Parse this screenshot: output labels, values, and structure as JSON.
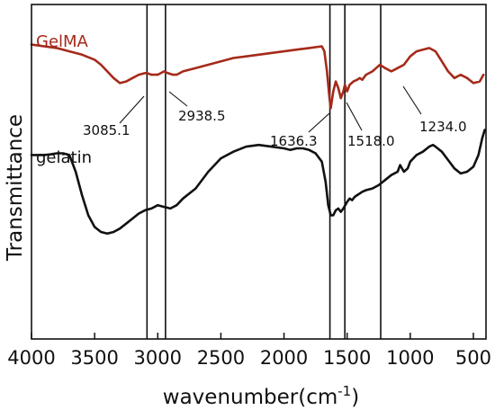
{
  "chart_data": {
    "type": "line",
    "title": "",
    "xlabel": "wavenumber",
    "xunit": "cm",
    "xunit_exp": "-1",
    "ylabel": "Transmittance",
    "xlim": [
      4000,
      400
    ],
    "x_reversed": true,
    "y_ticks_shown": false,
    "grid": false,
    "xticks": [
      {
        "value": 4000,
        "label": "4000"
      },
      {
        "value": 3500,
        "label": "3500"
      },
      {
        "value": 3000,
        "label": "3000"
      },
      {
        "value": 2500,
        "label": "2500"
      },
      {
        "value": 2000,
        "label": "2000"
      },
      {
        "value": 1500,
        "label": "1500"
      },
      {
        "value": 1000,
        "label": "1000"
      },
      {
        "value": 500,
        "label": "500"
      }
    ],
    "reference_lines": [
      3085.1,
      2938.5,
      1636.3,
      1518.0,
      1234.0
    ],
    "peak_labels": [
      {
        "text": "3085.1",
        "x": 3085.1
      },
      {
        "text": "2938.5",
        "x": 2938.5
      },
      {
        "text": "1636.3",
        "x": 1636.3
      },
      {
        "text": "1518.0",
        "x": 1518.0
      },
      {
        "text": "1234.0",
        "x": 1234.0
      }
    ],
    "series": [
      {
        "name": "GelMA",
        "color": "#a52a1a",
        "points": [
          [
            4000,
            0.88
          ],
          [
            3900,
            0.875
          ],
          [
            3800,
            0.87
          ],
          [
            3700,
            0.86
          ],
          [
            3600,
            0.85
          ],
          [
            3500,
            0.835
          ],
          [
            3450,
            0.82
          ],
          [
            3400,
            0.8
          ],
          [
            3350,
            0.78
          ],
          [
            3300,
            0.765
          ],
          [
            3250,
            0.77
          ],
          [
            3200,
            0.78
          ],
          [
            3150,
            0.79
          ],
          [
            3100,
            0.795
          ],
          [
            3085,
            0.795
          ],
          [
            3050,
            0.79
          ],
          [
            3000,
            0.79
          ],
          [
            2950,
            0.8
          ],
          [
            2920,
            0.795
          ],
          [
            2880,
            0.79
          ],
          [
            2850,
            0.79
          ],
          [
            2800,
            0.8
          ],
          [
            2700,
            0.81
          ],
          [
            2600,
            0.82
          ],
          [
            2500,
            0.83
          ],
          [
            2400,
            0.84
          ],
          [
            2300,
            0.845
          ],
          [
            2200,
            0.85
          ],
          [
            2100,
            0.855
          ],
          [
            2000,
            0.86
          ],
          [
            1900,
            0.865
          ],
          [
            1800,
            0.87
          ],
          [
            1700,
            0.875
          ],
          [
            1680,
            0.86
          ],
          [
            1660,
            0.8
          ],
          [
            1640,
            0.72
          ],
          [
            1630,
            0.69
          ],
          [
            1610,
            0.74
          ],
          [
            1590,
            0.77
          ],
          [
            1570,
            0.75
          ],
          [
            1550,
            0.72
          ],
          [
            1530,
            0.74
          ],
          [
            1518,
            0.76
          ],
          [
            1500,
            0.74
          ],
          [
            1480,
            0.76
          ],
          [
            1450,
            0.77
          ],
          [
            1420,
            0.775
          ],
          [
            1400,
            0.78
          ],
          [
            1380,
            0.775
          ],
          [
            1350,
            0.79
          ],
          [
            1300,
            0.8
          ],
          [
            1270,
            0.81
          ],
          [
            1240,
            0.82
          ],
          [
            1200,
            0.81
          ],
          [
            1150,
            0.8
          ],
          [
            1100,
            0.81
          ],
          [
            1050,
            0.82
          ],
          [
            1000,
            0.845
          ],
          [
            950,
            0.86
          ],
          [
            900,
            0.865
          ],
          [
            850,
            0.87
          ],
          [
            800,
            0.86
          ],
          [
            750,
            0.83
          ],
          [
            700,
            0.8
          ],
          [
            650,
            0.78
          ],
          [
            600,
            0.79
          ],
          [
            550,
            0.78
          ],
          [
            500,
            0.765
          ],
          [
            450,
            0.77
          ],
          [
            420,
            0.79
          ]
        ]
      },
      {
        "name": "gelatin",
        "color": "#111111",
        "points": [
          [
            4000,
            0.55
          ],
          [
            3900,
            0.55
          ],
          [
            3850,
            0.552
          ],
          [
            3800,
            0.555
          ],
          [
            3750,
            0.555
          ],
          [
            3700,
            0.55
          ],
          [
            3650,
            0.5
          ],
          [
            3600,
            0.43
          ],
          [
            3550,
            0.37
          ],
          [
            3500,
            0.335
          ],
          [
            3450,
            0.32
          ],
          [
            3400,
            0.315
          ],
          [
            3350,
            0.32
          ],
          [
            3300,
            0.33
          ],
          [
            3250,
            0.345
          ],
          [
            3200,
            0.36
          ],
          [
            3150,
            0.375
          ],
          [
            3100,
            0.385
          ],
          [
            3050,
            0.39
          ],
          [
            3000,
            0.4
          ],
          [
            2950,
            0.395
          ],
          [
            2900,
            0.39
          ],
          [
            2850,
            0.4
          ],
          [
            2800,
            0.42
          ],
          [
            2700,
            0.45
          ],
          [
            2600,
            0.5
          ],
          [
            2500,
            0.54
          ],
          [
            2400,
            0.56
          ],
          [
            2300,
            0.575
          ],
          [
            2200,
            0.58
          ],
          [
            2100,
            0.575
          ],
          [
            2000,
            0.57
          ],
          [
            1950,
            0.565
          ],
          [
            1900,
            0.57
          ],
          [
            1850,
            0.57
          ],
          [
            1800,
            0.565
          ],
          [
            1750,
            0.555
          ],
          [
            1700,
            0.53
          ],
          [
            1670,
            0.47
          ],
          [
            1650,
            0.4
          ],
          [
            1630,
            0.37
          ],
          [
            1610,
            0.37
          ],
          [
            1590,
            0.385
          ],
          [
            1570,
            0.39
          ],
          [
            1550,
            0.38
          ],
          [
            1530,
            0.39
          ],
          [
            1500,
            0.41
          ],
          [
            1480,
            0.42
          ],
          [
            1460,
            0.415
          ],
          [
            1440,
            0.425
          ],
          [
            1420,
            0.43
          ],
          [
            1400,
            0.435
          ],
          [
            1380,
            0.44
          ],
          [
            1350,
            0.445
          ],
          [
            1300,
            0.45
          ],
          [
            1250,
            0.46
          ],
          [
            1200,
            0.475
          ],
          [
            1150,
            0.49
          ],
          [
            1100,
            0.5
          ],
          [
            1080,
            0.52
          ],
          [
            1050,
            0.5
          ],
          [
            1020,
            0.51
          ],
          [
            1000,
            0.53
          ],
          [
            950,
            0.55
          ],
          [
            900,
            0.56
          ],
          [
            850,
            0.575
          ],
          [
            820,
            0.58
          ],
          [
            800,
            0.575
          ],
          [
            750,
            0.56
          ],
          [
            700,
            0.535
          ],
          [
            650,
            0.51
          ],
          [
            600,
            0.495
          ],
          [
            550,
            0.5
          ],
          [
            500,
            0.515
          ],
          [
            460,
            0.55
          ],
          [
            430,
            0.6
          ],
          [
            410,
            0.625
          ]
        ]
      }
    ]
  }
}
